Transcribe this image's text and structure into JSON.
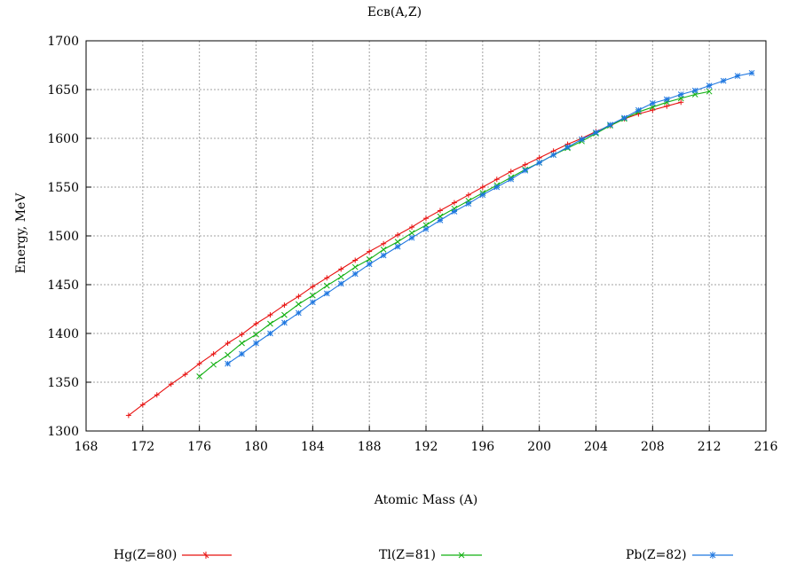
{
  "chart_data": {
    "type": "line",
    "title": "Eсв(A,Z)",
    "xlabel": "Atomic Mass (A)",
    "ylabel": "Energy, MeV",
    "xlim": [
      168,
      216
    ],
    "ylim": [
      1300,
      1700
    ],
    "xticks": [
      "168",
      "172",
      "176",
      "180",
      "184",
      "188",
      "192",
      "196",
      "200",
      "204",
      "208",
      "212",
      "216"
    ],
    "yticks": [
      "1300",
      "1350",
      "1400",
      "1450",
      "1500",
      "1550",
      "1600",
      "1650",
      "1700"
    ],
    "grid": true,
    "legend_position": "bottom",
    "series": [
      {
        "name": "Hg(Z=80)",
        "color": "#e8100f",
        "marker": "plus",
        "x": [
          171,
          172,
          173,
          174,
          175,
          176,
          177,
          178,
          179,
          180,
          181,
          182,
          183,
          184,
          185,
          186,
          187,
          188,
          189,
          190,
          191,
          192,
          193,
          194,
          195,
          196,
          197,
          198,
          199,
          200,
          201,
          202,
          203,
          204,
          205,
          206,
          207,
          208,
          209,
          210
        ],
        "y": [
          1316,
          1327,
          1337,
          1348,
          1358,
          1369,
          1379,
          1390,
          1399,
          1410,
          1419,
          1429,
          1438,
          1448,
          1457,
          1466,
          1475,
          1484,
          1492,
          1501,
          1509,
          1518,
          1526,
          1534,
          1542,
          1550,
          1558,
          1566,
          1573,
          1580,
          1587,
          1594,
          1600,
          1607,
          1613,
          1620,
          1625,
          1629,
          1633,
          1637
        ]
      },
      {
        "name": "Tl(Z=81)",
        "color": "#12b012",
        "marker": "x",
        "x": [
          176,
          177,
          178,
          179,
          180,
          181,
          182,
          183,
          184,
          185,
          186,
          187,
          188,
          189,
          190,
          191,
          192,
          193,
          194,
          195,
          196,
          197,
          198,
          199,
          200,
          201,
          202,
          203,
          204,
          205,
          206,
          207,
          208,
          209,
          210,
          211,
          212
        ],
        "y": [
          1356,
          1368,
          1378,
          1390,
          1399,
          1410,
          1419,
          1430,
          1439,
          1449,
          1458,
          1468,
          1476,
          1486,
          1494,
          1503,
          1511,
          1520,
          1528,
          1536,
          1544,
          1552,
          1560,
          1568,
          1575,
          1583,
          1590,
          1597,
          1605,
          1613,
          1620,
          1627,
          1632,
          1637,
          1641,
          1645,
          1648
        ]
      },
      {
        "name": "Pb(Z=82)",
        "color": "#1f77e0",
        "marker": "star",
        "x": [
          178,
          179,
          180,
          181,
          182,
          183,
          184,
          185,
          186,
          187,
          188,
          189,
          190,
          191,
          192,
          193,
          194,
          195,
          196,
          197,
          198,
          199,
          200,
          201,
          202,
          203,
          204,
          205,
          206,
          207,
          208,
          209,
          210,
          211,
          212,
          213,
          214,
          215
        ],
        "y": [
          1369,
          1379,
          1390,
          1400,
          1411,
          1421,
          1432,
          1441,
          1451,
          1461,
          1471,
          1480,
          1489,
          1498,
          1507,
          1516,
          1525,
          1533,
          1542,
          1550,
          1558,
          1567,
          1575,
          1583,
          1591,
          1599,
          1606,
          1614,
          1621,
          1629,
          1636,
          1640,
          1645,
          1649,
          1654,
          1659,
          1664,
          1667
        ]
      }
    ]
  }
}
